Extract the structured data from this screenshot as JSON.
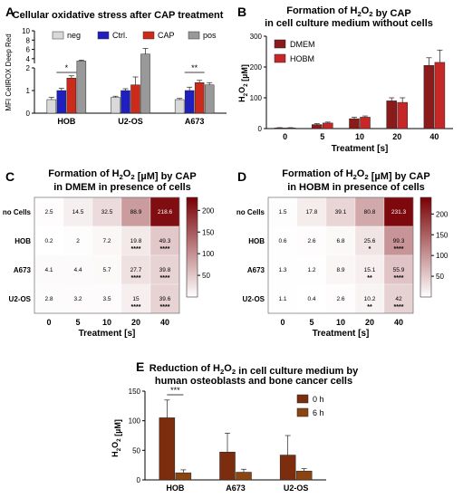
{
  "chart_data": [
    {
      "panel": "A",
      "type": "bar",
      "title": "Cellular oxidative stress after CAP treatment",
      "ylabel": "MFI CellROX Deep Red",
      "categories": [
        "HOB",
        "U2-OS",
        "A673"
      ],
      "series": [
        {
          "name": "neg",
          "color": "#d9d9d9",
          "values": [
            0.6,
            0.7,
            0.6
          ],
          "errors": [
            0.1,
            0.05,
            0.05
          ]
        },
        {
          "name": "Ctrl.",
          "color": "#1f1fbf",
          "values": [
            1.0,
            1.0,
            1.0
          ],
          "errors": [
            0.1,
            0.08,
            0.15
          ]
        },
        {
          "name": "CAP",
          "color": "#cc2a1b",
          "values": [
            1.55,
            1.25,
            1.35
          ],
          "errors": [
            0.1,
            0.35,
            0.1
          ]
        },
        {
          "name": "pos",
          "color": "#999999",
          "values": [
            3.5,
            5.0,
            1.25
          ],
          "errors": [
            0.2,
            1.2,
            0.1
          ]
        }
      ],
      "yticks_lower": [
        "0",
        "1",
        "2"
      ],
      "yticks_upper": [
        "4",
        "6",
        "8",
        "10"
      ],
      "significance": [
        {
          "category": "HOB",
          "label": "*"
        },
        {
          "category": "A673",
          "label": "**"
        }
      ]
    },
    {
      "panel": "B",
      "type": "bar",
      "title": "Formation of H2O2 by CAP",
      "subtitle": "in cell culture medium without cells",
      "xlabel": "Treatment [s]",
      "ylabel": "H2O2 [µM]",
      "categories": [
        "0",
        "5",
        "10",
        "20",
        "40"
      ],
      "ylim": [
        0,
        300
      ],
      "yticks": [
        "0",
        "100",
        "200",
        "300"
      ],
      "series": [
        {
          "name": "DMEM",
          "color": "#8b1a1a",
          "values": [
            2,
            13,
            32,
            90,
            205
          ],
          "errors": [
            1,
            3,
            5,
            10,
            25
          ]
        },
        {
          "name": "HOBM",
          "color": "#c62828",
          "values": [
            2,
            18,
            37,
            85,
            215
          ],
          "errors": [
            1,
            3,
            4,
            15,
            40
          ]
        }
      ]
    },
    {
      "panel": "C",
      "type": "heatmap",
      "title": "Formation of H2O2 [µM] by CAP",
      "subtitle": "in DMEM in presence of cells",
      "xlabel": "Treatment [s]",
      "columns": [
        "0",
        "5",
        "10",
        "20",
        "40"
      ],
      "rows": [
        "no Cells",
        "HOB",
        "A673",
        "U2-OS"
      ],
      "values": [
        [
          2.5,
          14.5,
          32.5,
          88.9,
          218.6
        ],
        [
          0.2,
          2.0,
          7.2,
          19.8,
          49.3
        ],
        [
          4.1,
          4.4,
          5.7,
          27.7,
          39.8
        ],
        [
          2.8,
          3.2,
          3.5,
          15.0,
          39.6
        ]
      ],
      "stars": [
        [
          "",
          "",
          "",
          "",
          ""
        ],
        [
          "",
          "",
          "",
          "****",
          "****"
        ],
        [
          "",
          "",
          "",
          "****",
          "****"
        ],
        [
          "",
          "",
          "",
          "****",
          "****"
        ]
      ],
      "colorbar_ticks": [
        "50",
        "100",
        "150",
        "200"
      ],
      "colorbar_range": [
        0,
        230
      ]
    },
    {
      "panel": "D",
      "type": "heatmap",
      "title": "Formation of H2O2 [µM] by CAP",
      "subtitle": "in HOBM in presence of cells",
      "xlabel": "Treatment [s]",
      "columns": [
        "0",
        "5",
        "10",
        "20",
        "40"
      ],
      "rows": [
        "no Cells",
        "HOB",
        "A673",
        "U2-OS"
      ],
      "values": [
        [
          1.5,
          17.8,
          39.1,
          80.8,
          231.3
        ],
        [
          0.6,
          2.6,
          6.8,
          25.6,
          99.3
        ],
        [
          1.3,
          1.2,
          8.9,
          15.1,
          55.9
        ],
        [
          1.1,
          0.4,
          2.6,
          10.2,
          42.0
        ]
      ],
      "stars": [
        [
          "",
          "",
          "",
          "",
          ""
        ],
        [
          "",
          "",
          "",
          "*",
          "****"
        ],
        [
          "",
          "",
          "",
          "**",
          "****"
        ],
        [
          "",
          "",
          "",
          "**",
          "****"
        ]
      ],
      "colorbar_ticks": [
        "50",
        "100",
        "150",
        "200"
      ],
      "colorbar_range": [
        0,
        240
      ]
    },
    {
      "panel": "E",
      "type": "bar",
      "title": "Reduction of H2O2 in cell culture medium by",
      "subtitle": "human osteoblasts and bone cancer cells",
      "ylabel": "H2O2 [µM]",
      "categories": [
        "HOB",
        "A673",
        "U2-OS"
      ],
      "ylim": [
        0,
        150
      ],
      "yticks": [
        "0",
        "50",
        "100",
        "150"
      ],
      "series": [
        {
          "name": "0 h",
          "color": "#7b2d0e",
          "values": [
            105,
            47,
            42
          ],
          "errors": [
            30,
            32,
            33
          ]
        },
        {
          "name": "6 h",
          "color": "#8b4513",
          "values": [
            12,
            13,
            15
          ],
          "errors": [
            5,
            5,
            4
          ]
        }
      ],
      "significance": [
        {
          "category": "HOB",
          "label": "***"
        }
      ]
    }
  ]
}
